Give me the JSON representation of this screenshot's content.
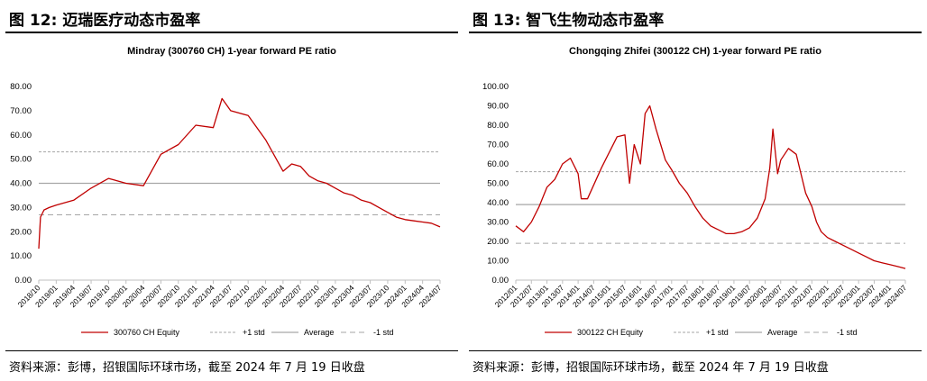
{
  "left": {
    "figure_title": "图 12: 迈瑞医疗动态市盈率",
    "source": "资料来源：彭博，招银国际环球市场，截至 2024 年 7 月 19 日收盘",
    "legend": {
      "series": "300760 CH Equity",
      "plus1": "+1 std",
      "average": "Average",
      "minus1": "-1 std"
    }
  },
  "right": {
    "figure_title": "图 13: 智飞生物动态市盈率",
    "source": "资料来源：彭博，招银国际环球市场，截至 2024 年 7 月 19 日收盘",
    "legend": {
      "series": "300122 CH Equity",
      "plus1": "+1 std",
      "average": "Average",
      "minus1": "-1 std"
    }
  },
  "colors": {
    "series": "#c00000",
    "average": "#a6a6a6",
    "std": "#a6a6a6"
  },
  "chart_data": [
    {
      "type": "line",
      "title": "Mindray (300760 CH) 1-year forward PE ratio",
      "ylim": [
        0,
        80
      ],
      "yticks": [
        "0.00",
        "10.00",
        "20.00",
        "30.00",
        "40.00",
        "50.00",
        "60.00",
        "70.00",
        "80.00"
      ],
      "xticks": [
        "2018/10",
        "2019/01",
        "2019/04",
        "2019/07",
        "2019/10",
        "2020/01",
        "2020/04",
        "2020/07",
        "2020/10",
        "2021/01",
        "2021/04",
        "2021/07",
        "2021/10",
        "2022/01",
        "2022/04",
        "2022/07",
        "2022/10",
        "2023/01",
        "2023/04",
        "2023/07",
        "2023/10",
        "2024/01",
        "2024/04",
        "2024/07"
      ],
      "reference_lines": {
        "plus1_std": 53,
        "average": 40,
        "minus1_std": 27
      },
      "series": [
        {
          "name": "300760 CH Equity",
          "x": [
            0,
            0.1,
            0.3,
            0.6,
            1,
            2,
            3,
            4,
            5,
            6,
            7,
            8,
            9,
            10,
            10.5,
            11,
            12,
            13,
            14,
            14.5,
            15,
            15.5,
            16,
            16.5,
            17,
            17.5,
            18,
            18.5,
            19,
            19.5,
            20,
            20.5,
            21,
            21.5,
            22,
            22.5,
            23
          ],
          "y": [
            13,
            26,
            29,
            30,
            31,
            33,
            38,
            42,
            40,
            39,
            52,
            56,
            64,
            63,
            75,
            70,
            68,
            58,
            45,
            48,
            47,
            43,
            41,
            40,
            38,
            36,
            35,
            33,
            32,
            30,
            28,
            26,
            25,
            24.5,
            24,
            23.5,
            22
          ]
        }
      ]
    },
    {
      "type": "line",
      "title": "Chongqing Zhifei (300122 CH) 1-year forward PE ratio",
      "ylim": [
        0,
        100
      ],
      "yticks": [
        "0.00",
        "10.00",
        "20.00",
        "30.00",
        "40.00",
        "50.00",
        "60.00",
        "70.00",
        "80.00",
        "90.00",
        "100.00"
      ],
      "xticks": [
        "2012/01",
        "2012/07",
        "2013/01",
        "2013/07",
        "2014/01",
        "2014/07",
        "2015/01",
        "2015/07",
        "2016/01",
        "2016/07",
        "2017/01",
        "2017/07",
        "2018/01",
        "2018/07",
        "2019/01",
        "2019/07",
        "2020/01",
        "2020/07",
        "2021/01",
        "2021/07",
        "2022/01",
        "2022/07",
        "2023/01",
        "2023/07",
        "2024/01",
        "2024/07"
      ],
      "reference_lines": {
        "plus1_std": 56,
        "average": 39,
        "minus1_std": 19
      },
      "series": [
        {
          "name": "300122 CH Equity",
          "x": [
            0,
            0.5,
            1,
            1.5,
            2,
            2.5,
            3,
            3.5,
            4,
            4.2,
            4.6,
            5.5,
            6.5,
            7,
            7.3,
            7.6,
            8,
            8.3,
            8.6,
            9,
            9.3,
            9.6,
            10,
            10.5,
            11,
            11.5,
            12,
            12.5,
            13,
            13.5,
            14,
            14.5,
            15,
            15.5,
            16,
            16.3,
            16.5,
            16.8,
            17,
            17.5,
            18,
            18.3,
            18.6,
            19,
            19.3,
            19.6,
            20,
            20.5,
            21,
            21.5,
            22,
            22.5,
            23,
            23.5,
            24,
            24.5,
            25
          ],
          "y": [
            28,
            25,
            30,
            38,
            48,
            52,
            60,
            63,
            55,
            42,
            42,
            58,
            74,
            75,
            50,
            70,
            60,
            86,
            90,
            78,
            70,
            62,
            57,
            50,
            45,
            38,
            32,
            28,
            26,
            24,
            24,
            25,
            27,
            32,
            42,
            58,
            78,
            55,
            62,
            68,
            65,
            55,
            45,
            38,
            30,
            25,
            22,
            20,
            18,
            16,
            14,
            12,
            10,
            9,
            8,
            7,
            6
          ]
        }
      ]
    }
  ]
}
